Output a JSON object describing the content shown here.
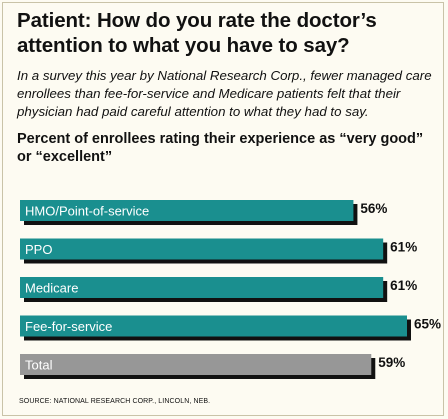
{
  "title": "Patient: How do you rate the doctor’s attention to what you have to say?",
  "intro": "In a survey this year by National Research Corp., fewer managed care enrollees than fee-for-service and Medicare patients felt that their physician had paid careful attention to what they had to say.",
  "source": "SOURCE: NATIONAL RESEARCH CORP., LINCOLN, NEB.",
  "colors": {
    "bar": "#1a8f8f",
    "total_bar": "#979797",
    "shadow": "#111111",
    "background": "#fdfbf2"
  },
  "chart_data": {
    "type": "bar",
    "orientation": "horizontal",
    "title": "Percent of enrollees rating their experience as “very good” or “excellent”",
    "categories": [
      "HMO/Point-of-service",
      "PPO",
      "Medicare",
      "Fee-for-service",
      "Total"
    ],
    "values": [
      56,
      61,
      61,
      65,
      59
    ],
    "value_labels": [
      "56%",
      "61%",
      "61%",
      "65%",
      "59%"
    ],
    "xlim": [
      0,
      65
    ],
    "grid": false,
    "legend": "none"
  }
}
